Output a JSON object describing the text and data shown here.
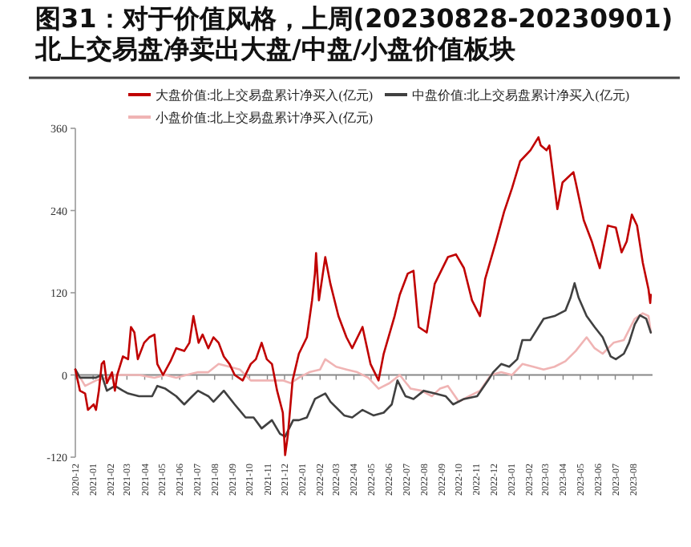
{
  "chart_data": {
    "type": "line",
    "title": "图31：对于价值风格，上周(20230828-20230901)北上交易盘净卖出大盘/中盘/小盘价值板块",
    "legend": "top",
    "line_style": "solid",
    "marker": "none",
    "ref_lines": [
      {
        "axis": "y",
        "value": 0,
        "color": "#888888"
      }
    ],
    "xlim": [
      "2020-12-01",
      "2023-09-04"
    ],
    "xticks": [
      {
        "value": "2020-12",
        "label": "2020-12"
      },
      {
        "value": "2021-01",
        "label": "2021-01"
      },
      {
        "value": "2021-02",
        "label": "2021-02"
      },
      {
        "value": "2021-03",
        "label": "2021-03"
      },
      {
        "value": "2021-04",
        "label": "2021-04"
      },
      {
        "value": "2021-05",
        "label": "2021-05"
      },
      {
        "value": "2021-06",
        "label": "2021-06"
      },
      {
        "value": "2021-07",
        "label": "2021-07"
      },
      {
        "value": "2021-08",
        "label": "2021-08"
      },
      {
        "value": "2021-09",
        "label": "2021-09"
      },
      {
        "value": "2021-10",
        "label": "2021-10"
      },
      {
        "value": "2021-11",
        "label": "2021-11"
      },
      {
        "value": "2021-12",
        "label": "2021-12"
      },
      {
        "value": "2022-01",
        "label": "2022-01"
      },
      {
        "value": "2022-02",
        "label": "2022-02"
      },
      {
        "value": "2022-03",
        "label": "2022-03"
      },
      {
        "value": "2022-04",
        "label": "2022-04"
      },
      {
        "value": "2022-05",
        "label": "2022-05"
      },
      {
        "value": "2022-06",
        "label": "2022-06"
      },
      {
        "value": "2022-07",
        "label": "2022-07"
      },
      {
        "value": "2022-08",
        "label": "2022-08"
      },
      {
        "value": "2022-09",
        "label": "2022-09"
      },
      {
        "value": "2022-10",
        "label": "2022-10"
      },
      {
        "value": "2022-11",
        "label": "2022-11"
      },
      {
        "value": "2022-12",
        "label": "2022-12"
      },
      {
        "value": "2023-01",
        "label": "2023-01"
      },
      {
        "value": "2023-02",
        "label": "2023-02"
      },
      {
        "value": "2023-03",
        "label": "2023-03"
      },
      {
        "value": "2023-04",
        "label": "2023-04"
      },
      {
        "value": "2023-05",
        "label": "2023-05"
      },
      {
        "value": "2023-06",
        "label": "2023-06"
      },
      {
        "value": "2023-07",
        "label": "2023-07"
      },
      {
        "value": "2023-08",
        "label": "2023-08"
      }
    ],
    "ylim": [
      -120,
      360
    ],
    "yticks": [
      -120,
      0,
      120,
      240,
      360
    ],
    "series": [
      {
        "name": "大盘价值:北上交易盘累计净买入(亿元)",
        "color": "#c00000",
        "x": [
          "2020-12-01",
          "2020-12-09",
          "2020-12-18",
          "2020-12-23",
          "2021-01-02",
          "2021-01-06",
          "2021-01-11",
          "2021-01-16",
          "2021-01-20",
          "2021-01-25",
          "2021-02-03",
          "2021-02-08",
          "2021-02-12",
          "2021-02-22",
          "2021-03-03",
          "2021-03-08",
          "2021-03-14",
          "2021-03-20",
          "2021-03-31",
          "2021-04-09",
          "2021-04-18",
          "2021-04-23",
          "2021-05-03",
          "2021-05-16",
          "2021-05-26",
          "2021-06-09",
          "2021-06-18",
          "2021-06-25",
          "2021-07-04",
          "2021-07-11",
          "2021-07-21",
          "2021-07-30",
          "2021-08-08",
          "2021-08-17",
          "2021-08-27",
          "2021-09-05",
          "2021-09-19",
          "2021-10-03",
          "2021-10-12",
          "2021-10-22",
          "2021-10-31",
          "2021-11-09",
          "2021-11-18",
          "2021-11-28",
          "2021-12-02",
          "2021-12-07",
          "2021-12-15",
          "2021-12-26",
          "2022-01-09",
          "2022-01-18",
          "2022-01-23",
          "2022-01-25",
          "2022-01-30",
          "2022-02-10",
          "2022-02-19",
          "2022-03-05",
          "2022-03-19",
          "2022-03-29",
          "2022-04-16",
          "2022-04-30",
          "2022-05-14",
          "2022-05-23",
          "2022-06-11",
          "2022-06-20",
          "2022-07-04",
          "2022-07-14",
          "2022-07-23",
          "2022-08-06",
          "2022-08-20",
          "2022-09-12",
          "2022-09-26",
          "2022-10-10",
          "2022-10-24",
          "2022-11-07",
          "2022-11-16",
          "2022-12-05",
          "2022-12-19",
          "2023-01-02",
          "2023-01-16",
          "2023-02-03",
          "2023-02-17",
          "2023-02-21",
          "2023-03-03",
          "2023-03-08",
          "2023-03-22",
          "2023-03-31",
          "2023-04-19",
          "2023-04-23",
          "2023-05-07",
          "2023-05-21",
          "2023-06-04",
          "2023-06-18",
          "2023-07-02",
          "2023-07-12",
          "2023-07-21",
          "2023-07-30",
          "2023-08-08",
          "2023-08-18",
          "2023-08-28",
          "2023-08-31",
          "2023-09-01"
        ],
        "values": [
          8,
          -23,
          -27,
          -51,
          -43,
          -51,
          -23,
          16,
          20,
          -12,
          4,
          -23,
          0,
          27,
          23,
          70,
          62,
          23,
          47,
          55,
          59,
          16,
          0,
          20,
          39,
          35,
          47,
          86,
          47,
          59,
          39,
          55,
          47,
          27,
          16,
          0,
          -8,
          16,
          23,
          47,
          23,
          16,
          -23,
          -55,
          -117,
          -86,
          -8,
          31,
          55,
          109,
          148,
          178,
          109,
          172,
          133,
          86,
          55,
          39,
          70,
          16,
          -8,
          31,
          86,
          117,
          148,
          152,
          70,
          62,
          133,
          172,
          176,
          156,
          109,
          86,
          140,
          195,
          238,
          273,
          312,
          328,
          347,
          335,
          328,
          335,
          242,
          281,
          296,
          281,
          226,
          195,
          156,
          218,
          215,
          179,
          195,
          234,
          218,
          164,
          125,
          105,
          117
        ]
      },
      {
        "name": "中盘价值:北上交易盘累计净买入(亿元)",
        "color": "#404040",
        "x": [
          "2020-12-01",
          "2020-12-09",
          "2021-01-06",
          "2021-01-16",
          "2021-01-25",
          "2021-02-08",
          "2021-02-22",
          "2021-03-03",
          "2021-03-22",
          "2021-04-14",
          "2021-04-23",
          "2021-05-07",
          "2021-05-26",
          "2021-06-09",
          "2021-06-23",
          "2021-07-03",
          "2021-07-21",
          "2021-07-30",
          "2021-08-17",
          "2021-09-05",
          "2021-09-24",
          "2021-10-08",
          "2021-10-22",
          "2021-11-09",
          "2021-11-23",
          "2021-12-02",
          "2021-12-16",
          "2021-12-26",
          "2022-01-09",
          "2022-01-23",
          "2022-02-10",
          "2022-02-19",
          "2022-03-15",
          "2022-03-29",
          "2022-04-16",
          "2022-05-05",
          "2022-05-23",
          "2022-06-06",
          "2022-06-16",
          "2022-06-30",
          "2022-07-14",
          "2022-08-01",
          "2022-08-20",
          "2022-09-08",
          "2022-09-21",
          "2022-10-10",
          "2022-11-02",
          "2022-11-21",
          "2022-11-30",
          "2022-12-14",
          "2022-12-28",
          "2023-01-11",
          "2023-01-20",
          "2023-02-03",
          "2023-02-17",
          "2023-02-26",
          "2023-03-17",
          "2023-04-05",
          "2023-04-14",
          "2023-04-21",
          "2023-04-28",
          "2023-05-12",
          "2023-05-26",
          "2023-06-09",
          "2023-06-23",
          "2023-07-02",
          "2023-07-16",
          "2023-07-25",
          "2023-08-04",
          "2023-08-13",
          "2023-08-24",
          "2023-09-01"
        ],
        "values": [
          8,
          -4,
          -4,
          0,
          -23,
          -16,
          -23,
          -27,
          -31,
          -31,
          -16,
          -20,
          -31,
          -43,
          -31,
          -23,
          -31,
          -39,
          -23,
          -43,
          -62,
          -62,
          -78,
          -66,
          -86,
          -90,
          -66,
          -66,
          -62,
          -35,
          -27,
          -39,
          -59,
          -62,
          -51,
          -59,
          -55,
          -43,
          -8,
          -31,
          -35,
          -23,
          -27,
          -31,
          -43,
          -35,
          -31,
          -8,
          4,
          16,
          12,
          23,
          51,
          51,
          70,
          82,
          86,
          94,
          113,
          134,
          113,
          86,
          70,
          55,
          27,
          23,
          31,
          47,
          74,
          87,
          82,
          62
        ]
      },
      {
        "name": "小盘价值:北上交易盘累计净买入(亿元)",
        "color": "#f0b4b4",
        "x": [
          "2020-12-01",
          "2020-12-18",
          "2021-01-06",
          "2021-01-25",
          "2021-02-12",
          "2021-03-03",
          "2021-03-22",
          "2021-04-18",
          "2021-05-07",
          "2021-05-26",
          "2021-06-13",
          "2021-07-03",
          "2021-07-21",
          "2021-08-08",
          "2021-08-27",
          "2021-09-14",
          "2021-10-03",
          "2021-10-22",
          "2021-11-09",
          "2021-11-28",
          "2021-12-12",
          "2021-12-26",
          "2022-01-13",
          "2022-02-01",
          "2022-02-10",
          "2022-03-01",
          "2022-03-19",
          "2022-04-07",
          "2022-04-26",
          "2022-05-14",
          "2022-06-02",
          "2022-06-20",
          "2022-07-09",
          "2022-07-28",
          "2022-08-15",
          "2022-08-29",
          "2022-09-12",
          "2022-10-01",
          "2022-10-19",
          "2022-11-07",
          "2022-11-26",
          "2022-12-14",
          "2023-01-02",
          "2023-01-20",
          "2023-02-08",
          "2023-02-26",
          "2023-03-17",
          "2023-04-05",
          "2023-04-23",
          "2023-05-12",
          "2023-05-26",
          "2023-06-09",
          "2023-06-28",
          "2023-07-16",
          "2023-08-04",
          "2023-08-18",
          "2023-08-28",
          "2023-09-01"
        ],
        "values": [
          8,
          -16,
          -8,
          -4,
          0,
          0,
          0,
          -4,
          0,
          -4,
          0,
          4,
          4,
          16,
          12,
          8,
          -8,
          -8,
          -8,
          -8,
          -12,
          -4,
          4,
          8,
          23,
          12,
          8,
          4,
          -4,
          -20,
          -12,
          0,
          -20,
          -23,
          -31,
          -20,
          -16,
          -39,
          -31,
          -23,
          0,
          4,
          0,
          16,
          12,
          8,
          12,
          20,
          35,
          55,
          39,
          31,
          47,
          51,
          82,
          90,
          86,
          62
        ]
      }
    ]
  }
}
